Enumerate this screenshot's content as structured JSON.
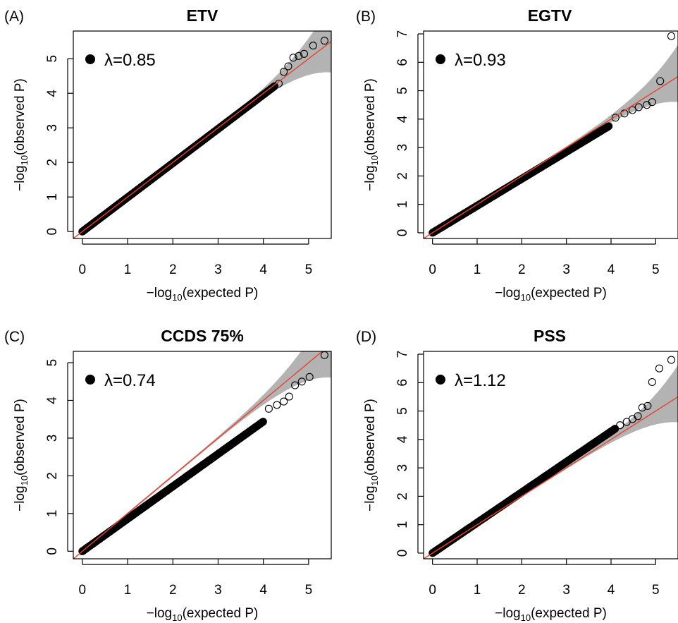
{
  "figure": {
    "panels": [
      {
        "letter": "(A)",
        "title": "ETV",
        "lambda": "λ=0.85",
        "xlabel": "−log10(expected P)",
        "ylabel": "−log10(observed P)"
      },
      {
        "letter": "(B)",
        "title": "EGTV",
        "lambda": "λ=0.93",
        "xlabel": "−log10(expected P)",
        "ylabel": "−log10(observed P)"
      },
      {
        "letter": "(C)",
        "title": "CCDS 75%",
        "lambda": "λ=0.74",
        "xlabel": "−log10(expected P)",
        "ylabel": "−log10(observed P)"
      },
      {
        "letter": "(D)",
        "title": "PSS",
        "lambda": "λ=1.12",
        "xlabel": "−log10(expected P)",
        "ylabel": "−log10(observed P)"
      }
    ]
  },
  "colors": {
    "points": "#000000",
    "reference_line": "#e8412e",
    "confidence_band": "#b3b3b3"
  },
  "chart_data": [
    {
      "type": "scatter",
      "title": "ETV",
      "panel_label": "(A)",
      "annotation": "λ=0.85",
      "xlabel": "−log10(expected P)",
      "ylabel": "−log10(observed P)",
      "xlim": [
        -0.2,
        5.5
      ],
      "ylim": [
        -0.2,
        5.8
      ],
      "xticks": [
        0,
        1,
        2,
        3,
        4,
        5
      ],
      "yticks": [
        0,
        1,
        2,
        3,
        4,
        5
      ],
      "slope": 0.99,
      "max_expected": 5.35,
      "dense_until": 4.25,
      "tail_points": [
        [
          4.34,
          4.28
        ],
        [
          4.45,
          4.62
        ],
        [
          4.55,
          4.78
        ],
        [
          4.66,
          5.03
        ],
        [
          4.78,
          5.08
        ],
        [
          4.9,
          5.14
        ],
        [
          5.1,
          5.38
        ],
        [
          5.35,
          5.52
        ]
      ],
      "reference_line": "y = x",
      "confidence_band": true
    },
    {
      "type": "scatter",
      "title": "EGTV",
      "panel_label": "(B)",
      "annotation": "λ=0.93",
      "xlabel": "−log10(expected P)",
      "ylabel": "−log10(observed P)",
      "xlim": [
        -0.2,
        5.5
      ],
      "ylim": [
        -0.2,
        7.1
      ],
      "xticks": [
        0,
        1,
        2,
        3,
        4,
        5
      ],
      "yticks": [
        0,
        1,
        2,
        3,
        4,
        5,
        6,
        7
      ],
      "slope": 0.95,
      "max_expected": 5.35,
      "dense_until": 3.95,
      "tail_points": [
        [
          4.1,
          4.05
        ],
        [
          4.3,
          4.2
        ],
        [
          4.48,
          4.32
        ],
        [
          4.62,
          4.42
        ],
        [
          4.8,
          4.5
        ],
        [
          4.92,
          4.6
        ],
        [
          5.1,
          5.34
        ],
        [
          5.35,
          6.92
        ]
      ],
      "reference_line": "y = x",
      "confidence_band": true
    },
    {
      "type": "scatter",
      "title": "CCDS 75%",
      "panel_label": "(C)",
      "annotation": "λ=0.74",
      "xlabel": "−log10(expected P)",
      "ylabel": "−log10(observed P)",
      "xlim": [
        -0.2,
        5.5
      ],
      "ylim": [
        -0.2,
        5.3
      ],
      "xticks": [
        0,
        1,
        2,
        3,
        4,
        5
      ],
      "yticks": [
        0,
        1,
        2,
        3,
        4,
        5
      ],
      "slope": 0.86,
      "max_expected": 5.35,
      "dense_until": 4.0,
      "tail_points": [
        [
          4.12,
          3.78
        ],
        [
          4.3,
          3.88
        ],
        [
          4.45,
          3.97
        ],
        [
          4.57,
          4.1
        ],
        [
          4.7,
          4.4
        ],
        [
          4.85,
          4.5
        ],
        [
          5.02,
          4.62
        ],
        [
          5.35,
          5.2
        ]
      ],
      "reference_line": "y = x",
      "confidence_band": true
    },
    {
      "type": "scatter",
      "title": "PSS",
      "panel_label": "(D)",
      "annotation": "λ=1.12",
      "xlabel": "−log10(expected P)",
      "ylabel": "−log10(observed P)",
      "xlim": [
        -0.2,
        5.5
      ],
      "ylim": [
        -0.2,
        7.1
      ],
      "xticks": [
        0,
        1,
        2,
        3,
        4,
        5
      ],
      "yticks": [
        0,
        1,
        2,
        3,
        4,
        5,
        6,
        7
      ],
      "slope": 1.07,
      "max_expected": 5.35,
      "dense_until": 4.1,
      "tail_points": [
        [
          4.2,
          4.5
        ],
        [
          4.35,
          4.62
        ],
        [
          4.48,
          4.72
        ],
        [
          4.6,
          4.82
        ],
        [
          4.7,
          5.12
        ],
        [
          4.82,
          5.18
        ],
        [
          4.92,
          6.02
        ],
        [
          5.08,
          6.5
        ],
        [
          5.35,
          6.8
        ]
      ],
      "reference_line": "y = x",
      "confidence_band": true
    }
  ]
}
